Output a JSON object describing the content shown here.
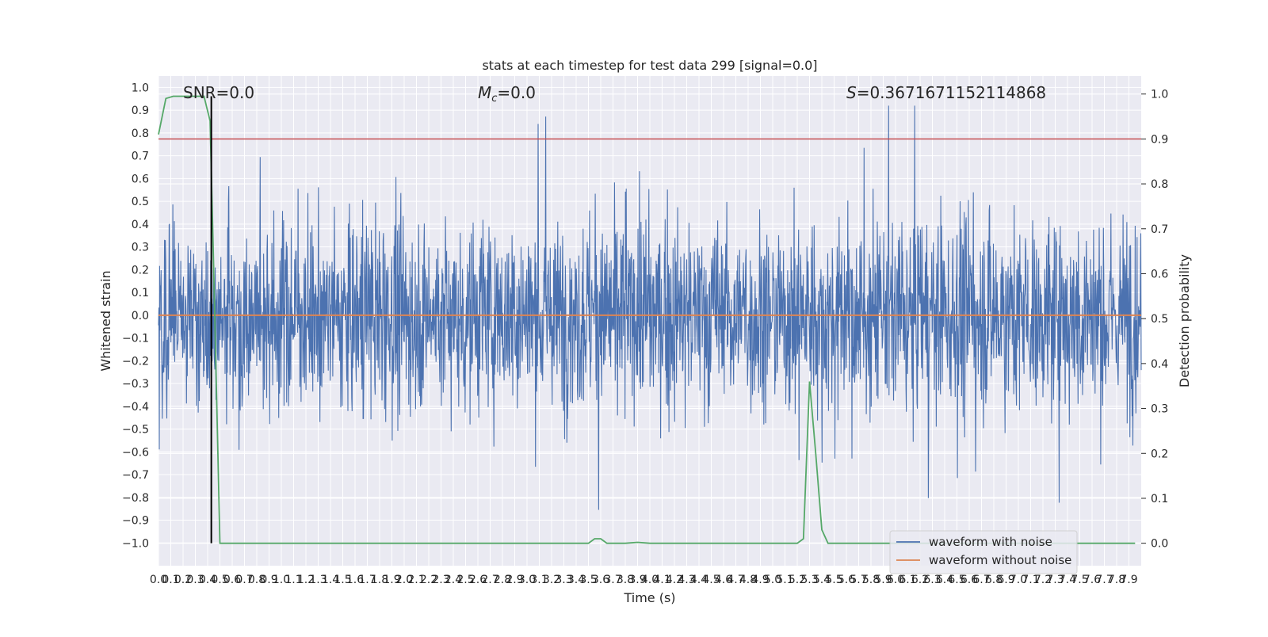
{
  "chart_data": {
    "type": "line",
    "title": "stats at each timestep for test data 299 [signal=0.0]",
    "xlabel": "Time (s)",
    "ylabel": "Whitened strain",
    "y2label": "Detection probability",
    "xlim": [
      0.0,
      8.0
    ],
    "ylim": [
      -1.1,
      1.05
    ],
    "y2lim": [
      -0.05,
      1.04
    ],
    "x_ticks": [
      "0.0",
      "0.1",
      "0.2",
      "0.3",
      "0.4",
      "0.5",
      "0.6",
      "0.7",
      "0.8",
      "0.9",
      "1.0",
      "1.1",
      "1.2",
      "1.3",
      "1.4",
      "1.5",
      "1.6",
      "1.7",
      "1.8",
      "1.9",
      "2.0",
      "2.1",
      "2.2",
      "2.3",
      "2.4",
      "2.5",
      "2.6",
      "2.7",
      "2.8",
      "2.9",
      "3.0",
      "3.1",
      "3.2",
      "3.3",
      "3.4",
      "3.5",
      "3.6",
      "3.7",
      "3.8",
      "3.9",
      "4.0",
      "4.1",
      "4.2",
      "4.3",
      "4.4",
      "4.5",
      "4.6",
      "4.7",
      "4.8",
      "4.9",
      "5.0",
      "5.1",
      "5.2",
      "5.3",
      "5.4",
      "5.5",
      "5.6",
      "5.7",
      "5.8",
      "5.9",
      "6.0",
      "6.1",
      "6.2",
      "6.3",
      "6.4",
      "6.5",
      "6.6",
      "6.7",
      "6.8",
      "6.9",
      "7.0",
      "7.1",
      "7.2",
      "7.3",
      "7.4",
      "7.5",
      "7.6",
      "7.7",
      "7.8",
      "7.9"
    ],
    "y_ticks": [
      "−1.0",
      "−0.9",
      "−0.8",
      "−0.7",
      "−0.6",
      "−0.5",
      "−0.4",
      "−0.3",
      "−0.2",
      "−0.1",
      "0.0",
      "0.1",
      "0.2",
      "0.3",
      "0.4",
      "0.5",
      "0.6",
      "0.7",
      "0.8",
      "0.9",
      "1.0"
    ],
    "y2_ticks": [
      "0.0",
      "0.1",
      "0.2",
      "0.3",
      "0.4",
      "0.5",
      "0.6",
      "0.7",
      "0.8",
      "0.9",
      "1.0"
    ],
    "annotations": {
      "snr": "SNR=0.0",
      "mc_symbol": "M",
      "mc_sub": "c",
      "mc_value": "=0.0",
      "s_symbol": "S",
      "s_value": "=0.3671671152114868"
    },
    "threshold": 0.9,
    "marker_time": 0.43,
    "series": [
      {
        "name": "waveform with noise",
        "color": "#4c72b0",
        "axis": "left",
        "noise_amplitude": 0.5
      },
      {
        "name": "waveform without noise",
        "color": "#dd8452",
        "axis": "left",
        "x": [
          0.0,
          8.0
        ],
        "y": [
          0.0,
          0.0
        ]
      },
      {
        "color": "#55a868",
        "axis": "right",
        "x": [
          0.0,
          0.06,
          0.12,
          0.2,
          0.3,
          0.37,
          0.42,
          0.45,
          0.5,
          1.0,
          2.0,
          3.0,
          3.5,
          3.55,
          3.6,
          3.65,
          3.7,
          3.8,
          3.9,
          4.0,
          4.5,
          5.0,
          5.2,
          5.25,
          5.3,
          5.35,
          5.4,
          5.45,
          5.5,
          5.55,
          5.6,
          6.0,
          7.0,
          7.95
        ],
        "y": [
          0.91,
          0.99,
          0.995,
          0.995,
          0.995,
          0.995,
          0.94,
          0.6,
          0.0,
          0.0,
          0.0,
          0.0,
          0.0,
          0.01,
          0.01,
          0.0,
          0.0,
          0.0,
          0.002,
          0.0,
          0.0,
          0.0,
          0.0,
          0.01,
          0.36,
          0.2,
          0.03,
          0.0,
          0.0,
          0.0,
          0.0,
          0.0,
          0.0,
          0.0
        ]
      },
      {
        "color": "#c44e52",
        "axis": "right",
        "x": [
          0.0,
          8.0
        ],
        "y": [
          0.9,
          0.9
        ]
      }
    ],
    "legend": {
      "placement": "lower-right"
    }
  }
}
